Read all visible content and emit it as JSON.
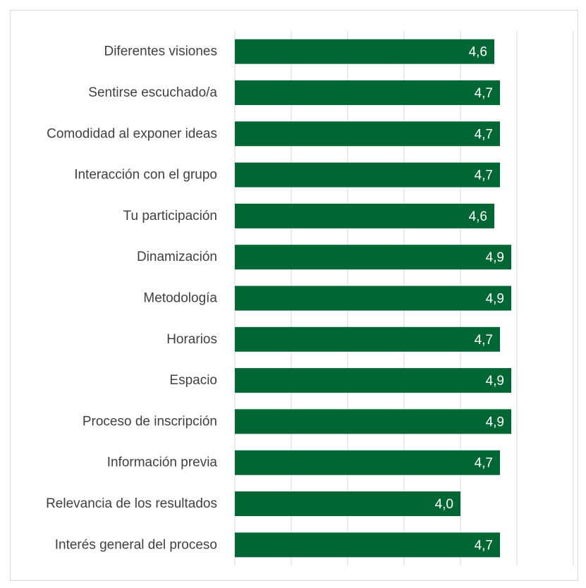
{
  "chart_data": {
    "type": "bar",
    "orientation": "horizontal",
    "categories": [
      "Diferentes visiones",
      "Sentirse escuchado/a",
      "Comodidad al exponer ideas",
      "Interacción con el grupo",
      "Tu participación",
      "Dinamización",
      "Metodología",
      "Horarios",
      "Espacio",
      "Proceso de inscripción",
      "Información previa",
      "Relevancia de los resultados",
      "Interés general del proceso"
    ],
    "values": [
      4.6,
      4.7,
      4.7,
      4.7,
      4.6,
      4.9,
      4.9,
      4.7,
      4.9,
      4.9,
      4.7,
      4.0,
      4.7
    ],
    "value_labels": [
      "4,6",
      "4,7",
      "4,7",
      "4,7",
      "4,6",
      "4,9",
      "4,9",
      "4,7",
      "4,9",
      "4,9",
      "4,7",
      "4,0",
      "4,7"
    ],
    "xlim": [
      0,
      6
    ],
    "gridlines": [
      0,
      1,
      2,
      3,
      4,
      5,
      6
    ],
    "grid": true,
    "legend": "none",
    "bar_color": "#006633",
    "title": "",
    "xlabel": "",
    "ylabel": ""
  }
}
